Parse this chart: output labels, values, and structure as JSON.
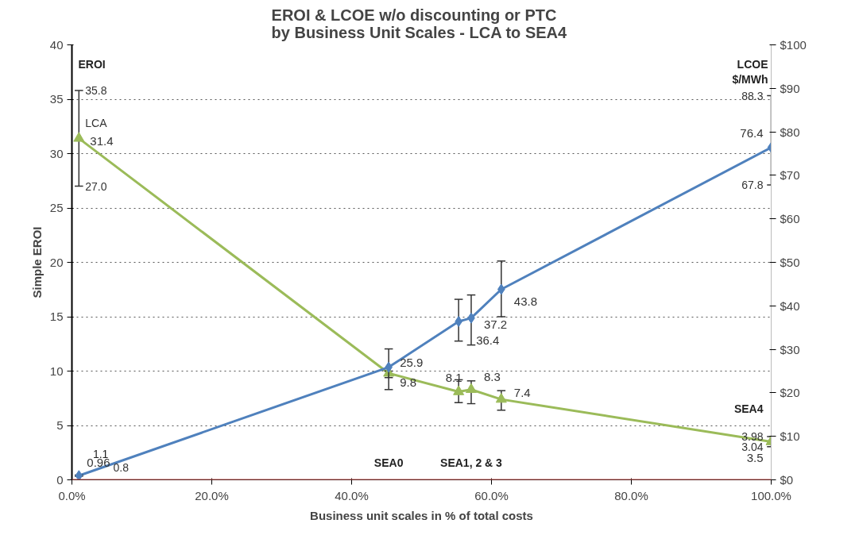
{
  "chart_data": {
    "type": "line",
    "title": "EROI & LCOE  w/o discounting or PTC\nby  Business Unit Scales - LCA to SEA4",
    "xlabel": "Business unit scales in % of total costs",
    "ylabel": "Simple EROI",
    "xlim": [
      0,
      100
    ],
    "xticks": [
      {
        "value": 0,
        "label": "0.0%"
      },
      {
        "value": 20,
        "label": "20.0%"
      },
      {
        "value": 40,
        "label": "40.0%"
      },
      {
        "value": 60,
        "label": "60.0%"
      },
      {
        "value": 80,
        "label": "80.0%"
      },
      {
        "value": 100,
        "label": "100.0%"
      }
    ],
    "ylim": [
      0,
      40
    ],
    "yticks": [
      0,
      5,
      10,
      15,
      20,
      25,
      30,
      35,
      40
    ],
    "y2lim": [
      0,
      100
    ],
    "y2ticks": [
      {
        "value": 0,
        "label": "$0"
      },
      {
        "value": 10,
        "label": "$10"
      },
      {
        "value": 20,
        "label": "$20"
      },
      {
        "value": 30,
        "label": "$30"
      },
      {
        "value": 40,
        "label": "$40"
      },
      {
        "value": 50,
        "label": "$50"
      },
      {
        "value": 60,
        "label": "$60"
      },
      {
        "value": 70,
        "label": "$70"
      },
      {
        "value": 80,
        "label": "$80"
      },
      {
        "value": 90,
        "label": "$90"
      },
      {
        "value": 100,
        "label": "$100"
      }
    ],
    "grid": "y",
    "data_labels": true,
    "series": [
      {
        "color": "#9bbb59",
        "marker": "triangle",
        "x": [
          1,
          45.3,
          55.3,
          57.1,
          61.4,
          100
        ],
        "values": [
          31.4,
          9.8,
          8.1,
          8.3,
          7.4,
          3.5
        ],
        "errors": [
          [
            27.0,
            35.8
          ],
          [
            8.3,
            10.0
          ],
          [
            7.1,
            9.2
          ],
          [
            7.0,
            9.1
          ],
          [
            6.4,
            8.2
          ],
          [
            3.04,
            3.98
          ]
        ]
      },
      {
        "color": "#4f81bd",
        "marker": "diamond",
        "axis": "y2",
        "x": [
          1,
          45.3,
          55.3,
          57.1,
          61.4,
          100
        ],
        "values": [
          0.96,
          25.9,
          36.4,
          37.2,
          43.8,
          76.4
        ],
        "errors": [
          [
            0.8,
            1.1
          ],
          [
            23.5,
            30.1
          ],
          [
            31.9,
            41.5
          ],
          [
            31.0,
            42.5
          ],
          [
            37.5,
            50.3
          ],
          [
            67.8,
            88.3
          ]
        ]
      }
    ],
    "ref_lines": [
      {
        "axis": "y",
        "value": 0,
        "color": "#c0504d"
      }
    ],
    "annotations": [
      "EROI",
      "LCOE\n$/MWh",
      "SEA0",
      "SEA1, 2 & 3",
      "1.1",
      "SEA4",
      {
        "text": "LCA",
        "x": 1,
        "y": 32.8
      },
      {
        "text": "35.8",
        "x": 1,
        "y": 35.8
      },
      {
        "text": "27.0",
        "x": 1,
        "y": 27.0
      },
      {
        "text": "0.8",
        "x": 5,
        "y": 1.1
      },
      {
        "text": "88.3",
        "x": 100,
        "y": 35.3
      },
      {
        "text": "67.8",
        "x": 100,
        "y": 27.1
      },
      {
        "text": "3.98",
        "x": 100,
        "y": 3.98
      },
      {
        "text": "3.04",
        "x": 100,
        "y": 3.04
      }
    ]
  }
}
